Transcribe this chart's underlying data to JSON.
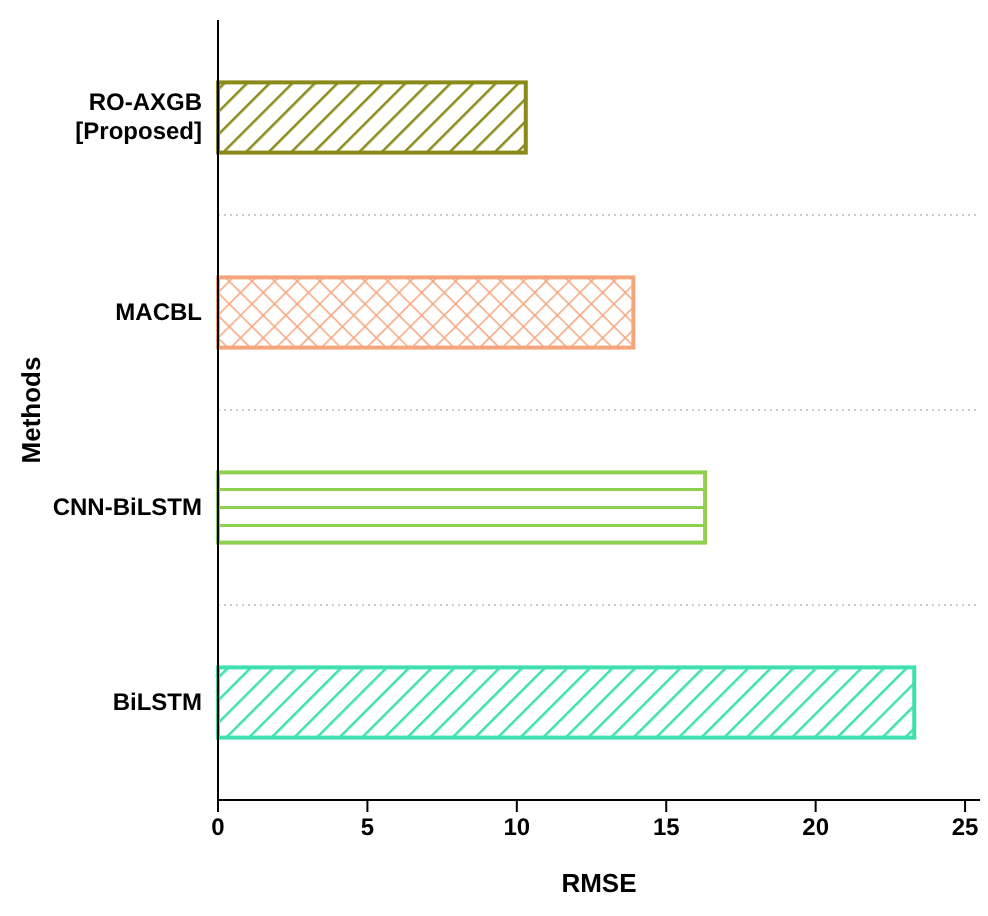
{
  "chart_data": {
    "type": "bar",
    "orientation": "horizontal",
    "xlabel": "RMSE",
    "ylabel": "Methods",
    "categories": [
      "RO-AXGB [Proposed]",
      "MACBL",
      "CNN-BiLSTM",
      "BiLSTM"
    ],
    "values": [
      10.3,
      13.9,
      16.3,
      23.3
    ],
    "colors": [
      "#8a8a1a",
      "#f5a57c",
      "#8fd14f",
      "#3fe0ae"
    ],
    "xlim": [
      0,
      25.5
    ],
    "xticks": [
      0,
      5,
      10,
      15,
      20,
      25
    ],
    "grid": "y"
  }
}
